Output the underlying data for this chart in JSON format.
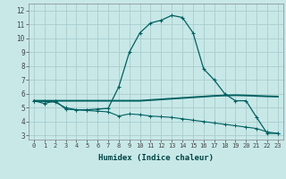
{
  "xlabel": "Humidex (Indice chaleur)",
  "bg_color": "#c8e8e8",
  "grid_color": "#aacccc",
  "line_color": "#006060",
  "x_ticks": [
    0,
    1,
    2,
    3,
    4,
    5,
    6,
    7,
    8,
    9,
    10,
    11,
    12,
    13,
    14,
    15,
    16,
    17,
    18,
    19,
    20,
    21,
    22,
    23
  ],
  "y_ticks": [
    3,
    4,
    5,
    6,
    7,
    8,
    9,
    10,
    11,
    12
  ],
  "ylim": [
    2.7,
    12.5
  ],
  "xlim": [
    -0.5,
    23.5
  ],
  "line1_x": [
    0,
    1,
    2,
    3,
    4,
    5,
    6,
    7,
    8,
    9,
    10,
    11,
    12,
    13,
    14,
    15,
    16,
    17,
    18,
    19,
    20,
    21,
    22,
    23
  ],
  "line1_y": [
    5.5,
    5.3,
    5.5,
    4.9,
    4.85,
    4.85,
    4.9,
    4.95,
    6.5,
    9.0,
    10.4,
    11.1,
    11.3,
    11.65,
    11.5,
    10.4,
    7.8,
    7.0,
    6.0,
    5.5,
    5.5,
    4.3,
    3.15,
    3.15
  ],
  "line2_x": [
    0,
    1,
    2,
    3,
    4,
    5,
    6,
    7,
    8,
    9,
    10,
    11,
    12,
    13,
    14,
    15,
    16,
    17,
    18,
    19,
    20,
    21,
    22,
    23
  ],
  "line2_y": [
    5.5,
    5.5,
    5.5,
    5.5,
    5.5,
    5.5,
    5.5,
    5.5,
    5.5,
    5.5,
    5.5,
    5.55,
    5.6,
    5.65,
    5.7,
    5.75,
    5.8,
    5.85,
    5.88,
    5.9,
    5.88,
    5.85,
    5.82,
    5.8
  ],
  "line3_x": [
    0,
    1,
    2,
    3,
    4,
    5,
    6,
    7,
    8,
    9,
    10,
    11,
    12,
    13,
    14,
    15,
    16,
    17,
    18,
    19,
    20,
    21,
    22,
    23
  ],
  "line3_y": [
    5.5,
    5.45,
    5.4,
    5.0,
    4.85,
    4.8,
    4.75,
    4.7,
    4.4,
    4.55,
    4.5,
    4.4,
    4.35,
    4.3,
    4.2,
    4.1,
    4.0,
    3.9,
    3.8,
    3.7,
    3.6,
    3.5,
    3.25,
    3.15
  ]
}
